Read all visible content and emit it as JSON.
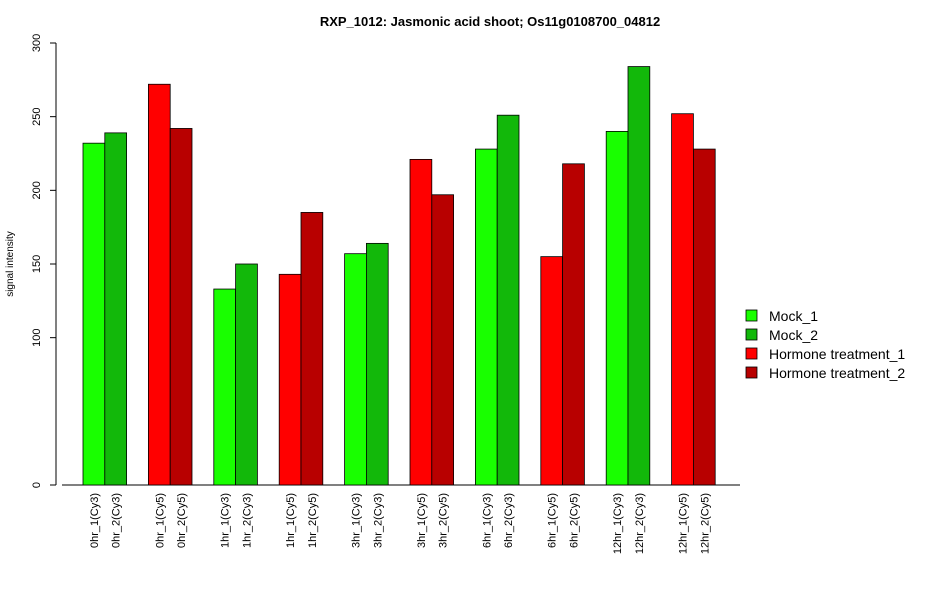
{
  "chart_data": {
    "type": "bar",
    "title": "RXP_1012: Jasmonic acid shoot; Os11g0108700_04812",
    "ylabel": "signal intensity",
    "ylim": [
      0,
      300
    ],
    "yticks": [
      0,
      100,
      150,
      200,
      250,
      300
    ],
    "categories": [
      "0hr_1(Cy3)",
      "0hr_2(Cy3)",
      "0hr_1(Cy5)",
      "0hr_2(Cy5)",
      "1hr_1(Cy3)",
      "1hr_2(Cy3)",
      "1hr_1(Cy5)",
      "1hr_2(Cy5)",
      "3hr_1(Cy3)",
      "3hr_2(Cy3)",
      "3hr_1(Cy5)",
      "3hr_2(Cy5)",
      "6hr_1(Cy3)",
      "6hr_2(Cy3)",
      "6hr_1(Cy5)",
      "6hr_2(Cy5)",
      "12hr_1(Cy3)",
      "12hr_2(Cy3)",
      "12hr_1(Cy5)",
      "12hr_2(Cy5)"
    ],
    "values": [
      232,
      239,
      272,
      242,
      133,
      150,
      143,
      185,
      157,
      164,
      221,
      197,
      228,
      251,
      155,
      218,
      240,
      284,
      252,
      228
    ],
    "series_index": [
      0,
      1,
      2,
      3,
      0,
      1,
      2,
      3,
      0,
      1,
      2,
      3,
      0,
      1,
      2,
      3,
      0,
      1,
      2,
      3
    ],
    "legend": [
      {
        "label": "Mock_1",
        "color": "#19ff00"
      },
      {
        "label": "Mock_2",
        "color": "#12b80a"
      },
      {
        "label": "Hormone treatment_1",
        "color": "#ff0000"
      },
      {
        "label": "Hormone treatment_2",
        "color": "#b80000"
      }
    ],
    "legend_position": "right",
    "grid": false
  }
}
